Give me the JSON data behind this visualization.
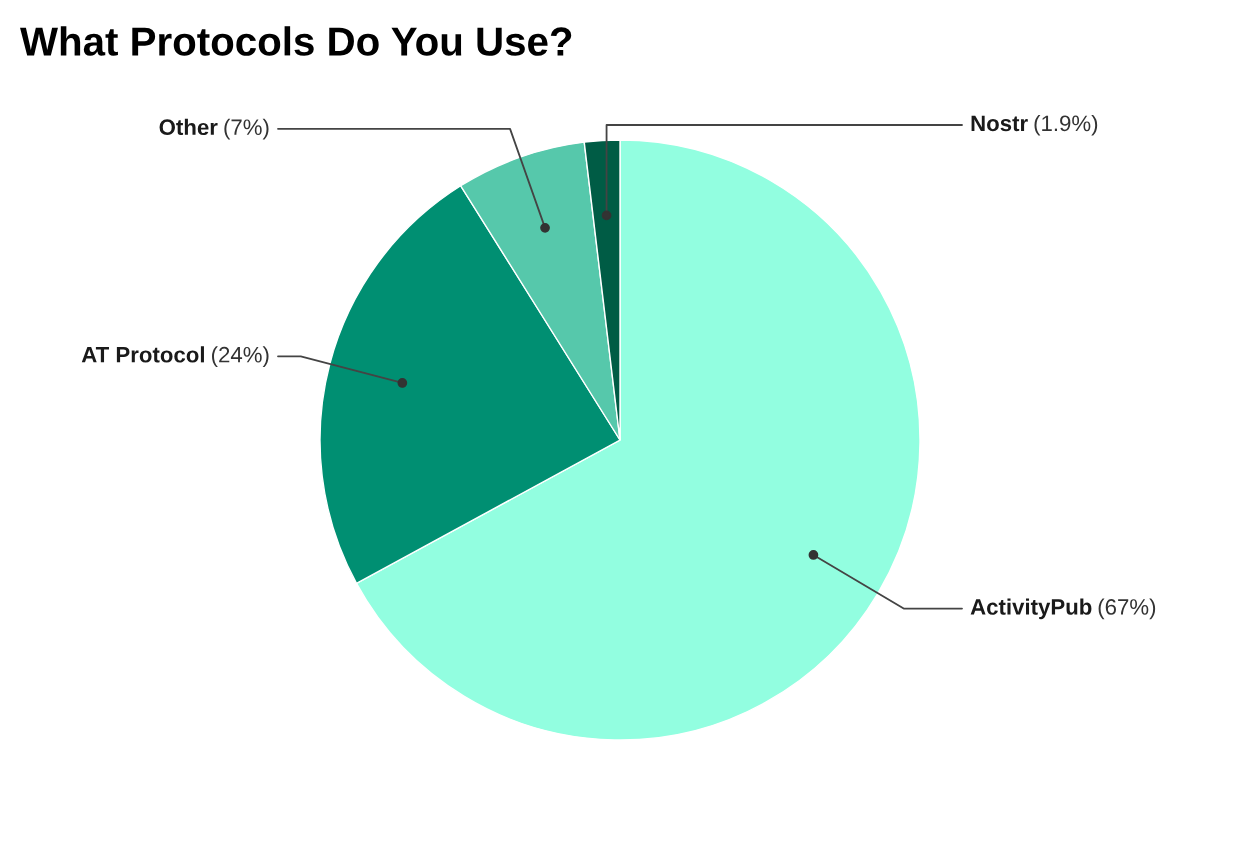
{
  "chart_data": {
    "type": "pie",
    "title": "What Protocols Do You Use?",
    "categories": [
      "ActivityPub",
      "AT Protocol",
      "Other",
      "Nostr"
    ],
    "values": [
      67,
      24,
      7,
      1.9
    ],
    "colors": [
      "#92fee0",
      "#008f72",
      "#56c8ab",
      "#005c45"
    ],
    "value_labels": [
      "(67%)",
      "(24%)",
      "(7%)",
      "(1.9%)"
    ]
  }
}
